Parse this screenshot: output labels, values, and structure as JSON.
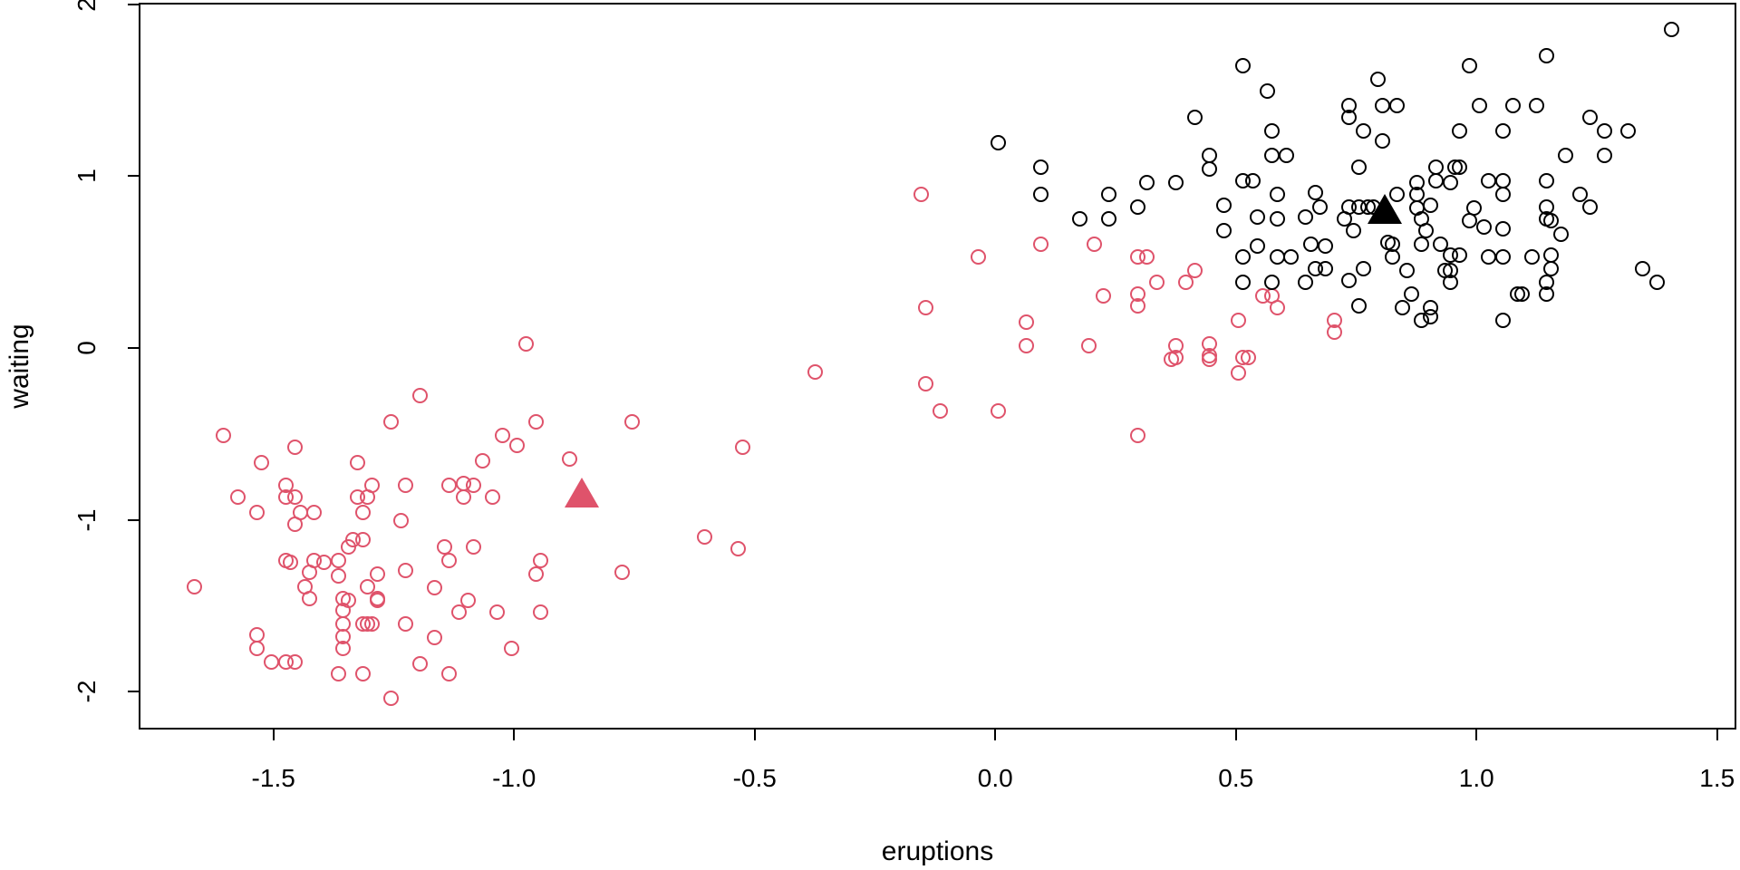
{
  "figure": {
    "background": "#FFFFFF"
  },
  "chart_data": {
    "type": "scatter",
    "title": "",
    "xlabel": "eruptions",
    "ylabel": "waiting",
    "x_tick_labels": [
      "-1.5",
      "-1.0",
      "-0.5",
      "0.0",
      "0.5",
      "1.0",
      "1.5"
    ],
    "x_tick_values": [
      -1.5,
      -1.0,
      -0.5,
      0.0,
      0.5,
      1.0,
      1.5
    ],
    "y_tick_labels": [
      "-2",
      "-1",
      "0",
      "1",
      "2"
    ],
    "y_tick_values": [
      -2,
      -1,
      0,
      1,
      2
    ],
    "xlim": [
      -1.78,
      1.54
    ],
    "ylim": [
      -2.22,
      2.01
    ],
    "grid": false,
    "legend": "none",
    "colors": {
      "cluster1": "#DF536B",
      "cluster2": "#000000",
      "axis": "#000000"
    },
    "series": [
      {
        "name": "cluster-1-points",
        "marker": "open-circle",
        "color": "#DF536B",
        "points": [
          [
            -1.6,
            -0.52
          ],
          [
            -1.45,
            -0.59
          ],
          [
            -1.52,
            -0.68
          ],
          [
            -1.32,
            -0.68
          ],
          [
            -1.25,
            -0.44
          ],
          [
            -1.19,
            -0.29
          ],
          [
            -1.47,
            -0.81
          ],
          [
            -1.47,
            -0.88
          ],
          [
            -1.45,
            -0.88
          ],
          [
            -1.57,
            -0.88
          ],
          [
            -1.53,
            -0.97
          ],
          [
            -1.44,
            -0.97
          ],
          [
            -1.41,
            -0.97
          ],
          [
            -1.45,
            -1.04
          ],
          [
            -1.32,
            -0.88
          ],
          [
            -1.3,
            -0.88
          ],
          [
            -1.29,
            -0.81
          ],
          [
            -1.31,
            -0.97
          ],
          [
            -1.22,
            -0.81
          ],
          [
            -1.23,
            -1.02
          ],
          [
            -1.33,
            -1.13
          ],
          [
            -1.31,
            -1.13
          ],
          [
            -0.97,
            0.01
          ],
          [
            -0.95,
            -0.44
          ],
          [
            -0.75,
            -0.44
          ],
          [
            -1.02,
            -0.52
          ],
          [
            -0.99,
            -0.58
          ],
          [
            -1.06,
            -0.67
          ],
          [
            -0.88,
            -0.66
          ],
          [
            -1.13,
            -0.81
          ],
          [
            -1.1,
            -0.8
          ],
          [
            -1.08,
            -0.81
          ],
          [
            -1.1,
            -0.88
          ],
          [
            -1.04,
            -0.88
          ],
          [
            -1.66,
            -1.4
          ],
          [
            -1.47,
            -1.25
          ],
          [
            -1.46,
            -1.26
          ],
          [
            -1.41,
            -1.25
          ],
          [
            -1.39,
            -1.26
          ],
          [
            -1.36,
            -1.25
          ],
          [
            -1.34,
            -1.17
          ],
          [
            -1.42,
            -1.32
          ],
          [
            -1.43,
            -1.4
          ],
          [
            -1.42,
            -1.47
          ],
          [
            -1.36,
            -1.34
          ],
          [
            -1.35,
            -1.47
          ],
          [
            -1.34,
            -1.48
          ],
          [
            -1.3,
            -1.4
          ],
          [
            -1.28,
            -1.48
          ],
          [
            -1.35,
            -1.54
          ],
          [
            -1.35,
            -1.62
          ],
          [
            -1.31,
            -1.62
          ],
          [
            -1.3,
            -1.62
          ],
          [
            -1.35,
            -1.69
          ],
          [
            -1.35,
            -1.76
          ],
          [
            -1.29,
            -1.62
          ],
          [
            -1.22,
            -1.62
          ],
          [
            -1.28,
            -1.33
          ],
          [
            -1.28,
            -1.47
          ],
          [
            -1.22,
            -1.31
          ],
          [
            -1.53,
            -1.68
          ],
          [
            -1.53,
            -1.76
          ],
          [
            -1.5,
            -1.84
          ],
          [
            -1.47,
            -1.84
          ],
          [
            -1.45,
            -1.84
          ],
          [
            -1.36,
            -1.91
          ],
          [
            -1.31,
            -1.91
          ],
          [
            -1.25,
            -2.05
          ],
          [
            -1.19,
            -1.85
          ],
          [
            -1.14,
            -1.17
          ],
          [
            -1.13,
            -1.25
          ],
          [
            -1.08,
            -1.17
          ],
          [
            -1.16,
            -1.41
          ],
          [
            -0.94,
            -1.25
          ],
          [
            -0.95,
            -1.33
          ],
          [
            -0.77,
            -1.32
          ],
          [
            -1.09,
            -1.48
          ],
          [
            -1.11,
            -1.55
          ],
          [
            -1.03,
            -1.55
          ],
          [
            -0.94,
            -1.55
          ],
          [
            -1.16,
            -1.7
          ],
          [
            -1.0,
            -1.76
          ],
          [
            -1.13,
            -1.91
          ],
          [
            -0.6,
            -1.11
          ],
          [
            -0.53,
            -1.18
          ],
          [
            -0.52,
            -0.59
          ],
          [
            -0.37,
            -0.15
          ],
          [
            -0.14,
            0.22
          ],
          [
            -0.14,
            -0.22
          ],
          [
            -0.11,
            -0.38
          ],
          [
            0.01,
            -0.38
          ],
          [
            -0.15,
            0.88
          ],
          [
            -0.03,
            0.52
          ],
          [
            0.37,
            -0.08
          ],
          [
            0.45,
            -0.08
          ],
          [
            0.3,
            -0.52
          ],
          [
            0.1,
            0.59
          ],
          [
            0.21,
            0.59
          ],
          [
            0.3,
            0.52
          ],
          [
            0.32,
            0.52
          ],
          [
            0.42,
            0.44
          ],
          [
            0.4,
            0.37
          ],
          [
            0.34,
            0.37
          ],
          [
            0.23,
            0.29
          ],
          [
            0.3,
            0.3
          ],
          [
            0.3,
            0.23
          ],
          [
            0.07,
            0.14
          ],
          [
            0.07,
            0.0
          ],
          [
            0.2,
            0.0
          ],
          [
            0.38,
            0.0
          ],
          [
            0.38,
            -0.07
          ],
          [
            0.45,
            0.01
          ],
          [
            0.45,
            -0.06
          ],
          [
            0.56,
            0.29
          ],
          [
            0.58,
            0.29
          ],
          [
            0.59,
            0.22
          ],
          [
            0.51,
            0.15
          ],
          [
            0.71,
            0.15
          ],
          [
            0.71,
            0.08
          ],
          [
            0.52,
            -0.07
          ],
          [
            0.53,
            -0.07
          ],
          [
            0.51,
            -0.16
          ]
        ]
      },
      {
        "name": "cluster-2-points",
        "marker": "open-circle",
        "color": "#000000",
        "points": [
          [
            0.01,
            1.18
          ],
          [
            0.1,
            1.04
          ],
          [
            0.1,
            0.88
          ],
          [
            0.42,
            1.33
          ],
          [
            0.45,
            1.11
          ],
          [
            0.45,
            1.03
          ],
          [
            0.32,
            0.95
          ],
          [
            0.38,
            0.95
          ],
          [
            0.24,
            0.88
          ],
          [
            0.3,
            0.81
          ],
          [
            0.18,
            0.74
          ],
          [
            0.24,
            0.74
          ],
          [
            0.52,
            1.63
          ],
          [
            0.57,
            1.48
          ],
          [
            0.8,
            1.55
          ],
          [
            0.99,
            1.63
          ],
          [
            0.74,
            1.4
          ],
          [
            0.81,
            1.4
          ],
          [
            0.84,
            1.4
          ],
          [
            0.74,
            1.33
          ],
          [
            0.58,
            1.25
          ],
          [
            0.77,
            1.25
          ],
          [
            0.81,
            1.19
          ],
          [
            0.97,
            1.25
          ],
          [
            0.58,
            1.11
          ],
          [
            0.61,
            1.11
          ],
          [
            0.76,
            1.04
          ],
          [
            0.52,
            0.96
          ],
          [
            0.54,
            0.96
          ],
          [
            0.92,
            1.04
          ],
          [
            0.96,
            1.04
          ],
          [
            0.97,
            1.04
          ],
          [
            0.92,
            0.96
          ],
          [
            0.95,
            0.95
          ],
          [
            0.88,
            0.95
          ],
          [
            0.59,
            0.88
          ],
          [
            0.67,
            0.89
          ],
          [
            0.68,
            0.81
          ],
          [
            0.84,
            0.88
          ],
          [
            0.88,
            0.88
          ],
          [
            0.88,
            0.8
          ],
          [
            0.89,
            0.74
          ],
          [
            0.91,
            0.82
          ],
          [
            0.48,
            0.82
          ],
          [
            0.48,
            0.67
          ],
          [
            0.55,
            0.75
          ],
          [
            0.59,
            0.74
          ],
          [
            0.65,
            0.75
          ],
          [
            0.73,
            0.74
          ],
          [
            0.75,
            0.67
          ],
          [
            0.74,
            0.81
          ],
          [
            0.76,
            0.81
          ],
          [
            0.78,
            0.81
          ],
          [
            0.79,
            0.81
          ],
          [
            0.55,
            0.58
          ],
          [
            0.52,
            0.52
          ],
          [
            0.52,
            0.37
          ],
          [
            0.59,
            0.52
          ],
          [
            0.62,
            0.52
          ],
          [
            0.58,
            0.37
          ],
          [
            0.66,
            0.59
          ],
          [
            0.69,
            0.58
          ],
          [
            0.67,
            0.45
          ],
          [
            0.69,
            0.45
          ],
          [
            0.65,
            0.37
          ],
          [
            0.74,
            0.38
          ],
          [
            0.77,
            0.45
          ],
          [
            0.76,
            0.23
          ],
          [
            0.82,
            0.6
          ],
          [
            0.83,
            0.59
          ],
          [
            0.83,
            0.52
          ],
          [
            0.86,
            0.44
          ],
          [
            0.89,
            0.59
          ],
          [
            0.9,
            0.67
          ],
          [
            0.93,
            0.59
          ],
          [
            0.95,
            0.53
          ],
          [
            0.97,
            0.53
          ],
          [
            0.94,
            0.44
          ],
          [
            0.95,
            0.44
          ],
          [
            0.95,
            0.37
          ],
          [
            0.87,
            0.3
          ],
          [
            0.85,
            0.22
          ],
          [
            0.91,
            0.22
          ],
          [
            0.91,
            0.17
          ],
          [
            0.89,
            0.15
          ],
          [
            1.41,
            1.84
          ],
          [
            1.15,
            1.69
          ],
          [
            1.01,
            1.4
          ],
          [
            1.08,
            1.4
          ],
          [
            1.13,
            1.4
          ],
          [
            1.06,
            1.25
          ],
          [
            1.24,
            1.33
          ],
          [
            1.27,
            1.25
          ],
          [
            1.32,
            1.25
          ],
          [
            1.19,
            1.11
          ],
          [
            1.27,
            1.11
          ],
          [
            1.03,
            0.96
          ],
          [
            1.06,
            0.96
          ],
          [
            1.06,
            0.88
          ],
          [
            1.15,
            0.96
          ],
          [
            1.22,
            0.88
          ],
          [
            1.24,
            0.81
          ],
          [
            1.15,
            0.81
          ],
          [
            1.15,
            0.74
          ],
          [
            1.06,
            0.68
          ],
          [
            1.16,
            0.73
          ],
          [
            1.18,
            0.65
          ],
          [
            1.03,
            0.52
          ],
          [
            1.06,
            0.52
          ],
          [
            1.12,
            0.52
          ],
          [
            1.16,
            0.53
          ],
          [
            1.16,
            0.45
          ],
          [
            1.15,
            0.37
          ],
          [
            1.15,
            0.3
          ],
          [
            1.09,
            0.3
          ],
          [
            1.1,
            0.3
          ],
          [
            1.06,
            0.15
          ],
          [
            1.35,
            0.45
          ],
          [
            1.38,
            0.37
          ],
          [
            1.0,
            0.8
          ],
          [
            0.99,
            0.73
          ],
          [
            1.02,
            0.69
          ]
        ]
      }
    ],
    "cluster_centers": [
      {
        "name": "cluster-1-center",
        "marker": "filled-triangle",
        "color": "#DF536B",
        "point": [
          -0.86,
          -0.85
        ]
      },
      {
        "name": "cluster-2-center",
        "marker": "filled-triangle",
        "color": "#000000",
        "point": [
          0.81,
          0.8
        ]
      }
    ]
  }
}
